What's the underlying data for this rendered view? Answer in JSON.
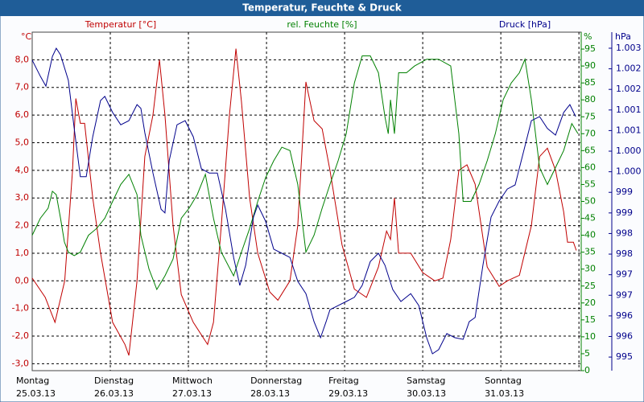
{
  "chart_data": {
    "type": "line",
    "title": "Temperatur, Feuchte & Druck",
    "ylabel": "Temperatur [°C]",
    "yunit": "°C",
    "y2label": "rel. Feuchte [%]",
    "y2unit": "%",
    "y3label": "Druck [hPa]",
    "y3unit": "hPa",
    "xlim": [
      0,
      168.7
    ],
    "xticks": [
      {
        "value": 0,
        "label": "Montag",
        "date": "25.03.13"
      },
      {
        "value": 24,
        "label": "Dienstag",
        "date": "26.03.13"
      },
      {
        "value": 48,
        "label": "Mittwoch",
        "date": "27.03.13"
      },
      {
        "value": 72,
        "label": "Donnerstag",
        "date": "28.03.13"
      },
      {
        "value": 96,
        "label": "Freitag",
        "date": "29.03.13"
      },
      {
        "value": 120,
        "label": "Samstag",
        "date": "30.03.13"
      },
      {
        "value": 144,
        "label": "Sonntag",
        "date": "31.03.13"
      },
      168
    ],
    "ylim": [
      -3.25,
      9.0
    ],
    "yticks": [
      {
        "value": -3,
        "label": "-3,0"
      },
      {
        "value": -2,
        "label": "-2,0"
      },
      {
        "value": -1,
        "label": "-1,0"
      },
      {
        "value": 0,
        "label": "0,0"
      },
      {
        "value": 1,
        "label": "1,0"
      },
      {
        "value": 2,
        "label": "2,0"
      },
      {
        "value": 3,
        "label": "3,0"
      },
      {
        "value": 4,
        "label": "4,0"
      },
      {
        "value": 5,
        "label": "5,0"
      },
      {
        "value": 6,
        "label": "6,0"
      },
      {
        "value": 7,
        "label": "7,0"
      },
      {
        "value": 8,
        "label": "8,0"
      }
    ],
    "y2lim": [
      0,
      100
    ],
    "y2ticks": [
      0,
      5,
      10,
      15,
      20,
      25,
      30,
      35,
      40,
      45,
      50,
      55,
      60,
      65,
      70,
      75,
      80,
      85,
      90,
      95
    ],
    "y3lim": [
      995.17,
      1003.39
    ],
    "y3ticks": [
      {
        "value": 995.5,
        "label": "995"
      },
      {
        "value": 996,
        "label": "996"
      },
      {
        "value": 996.5,
        "label": "996"
      },
      {
        "value": 997,
        "label": "997"
      },
      {
        "value": 997.5,
        "label": "997"
      },
      {
        "value": 998,
        "label": "998"
      },
      {
        "value": 998.5,
        "label": "998"
      },
      {
        "value": 999,
        "label": "999"
      },
      {
        "value": 999.5,
        "label": "999"
      },
      {
        "value": 1000,
        "label": "1.000"
      },
      {
        "value": 1000.5,
        "label": "1.000"
      },
      {
        "value": 1001,
        "label": "1.001"
      },
      {
        "value": 1001.5,
        "label": "1.001"
      },
      {
        "value": 1002,
        "label": "1.002"
      },
      {
        "value": 1002.5,
        "label": "1.002"
      },
      {
        "value": 1003,
        "label": "1.003"
      }
    ],
    "grid": true,
    "series": [
      {
        "name": "Temperatur",
        "color": "#c00000",
        "axis": "y",
        "x": [
          0,
          4,
          7,
          10,
          12.4,
          13.4,
          14.8,
          16.1,
          18.6,
          21,
          24.7,
          28.5,
          29.7,
          32.2,
          34.6,
          37.1,
          39.1,
          40.8,
          43.3,
          45.8,
          49.5,
          53.9,
          55.7,
          58.1,
          60.6,
          62.6,
          64.3,
          66.8,
          69.3,
          73,
          75.5,
          79.2,
          81.6,
          84.1,
          86.6,
          89.1,
          91.5,
          95.2,
          99,
          102.7,
          106.4,
          108.9,
          110.1,
          111.3,
          112.6,
          116.3,
          120,
          123.7,
          126.2,
          128.6,
          131.1,
          133.6,
          136.1,
          139.8,
          143.5,
          146,
          149.7,
          153.4,
          155.9,
          158.3,
          160.8,
          163.3,
          164.5,
          166.3,
          167.2
        ],
        "values": [
          0.1,
          -0.6,
          -1.5,
          0,
          4,
          6.6,
          5.7,
          5.7,
          3,
          1,
          -1.5,
          -2.3,
          -2.7,
          0,
          4.5,
          6,
          8.0,
          6,
          2,
          -0.5,
          -1.5,
          -2.3,
          -1.5,
          2,
          6,
          8.4,
          6.5,
          3,
          1,
          -0.4,
          -0.7,
          0,
          2,
          7.2,
          5.8,
          5.5,
          4,
          1.3,
          -0.3,
          -0.6,
          0.5,
          1.8,
          1.5,
          3.0,
          1.0,
          1.0,
          0.3,
          0,
          0.1,
          1.5,
          4,
          4.2,
          3.5,
          0.5,
          -0.2,
          0,
          0.2,
          2,
          4.5,
          4.8,
          4.0,
          2.5,
          1.4,
          1.4,
          1.1
        ]
      },
      {
        "name": "rel. Feuchte",
        "color": "#008000",
        "axis": "y2",
        "x": [
          0,
          2.5,
          4.9,
          6.2,
          7.4,
          8.7,
          9.9,
          11.1,
          12.9,
          14.8,
          17.3,
          19.8,
          22.3,
          24.7,
          27.2,
          29.7,
          32.2,
          33.4,
          35.9,
          38.3,
          40.8,
          43.3,
          45.8,
          48.2,
          50.7,
          53.2,
          55.7,
          58.1,
          61.9,
          64.3,
          66.8,
          69.3,
          71.7,
          74.2,
          76.7,
          79.2,
          81.6,
          84.1,
          86.6,
          89.1,
          91.5,
          94,
          96.5,
          99,
          101.4,
          103.9,
          106.4,
          108.4,
          109.4,
          110.1,
          111.3,
          112.6,
          115,
          117.5,
          121.2,
          124.9,
          128.6,
          131.1,
          132.4,
          134.8,
          137.3,
          139.8,
          142.3,
          144.7,
          147.2,
          149.7,
          151.4,
          153.4,
          155.9,
          158.3,
          160.8,
          163.3,
          165.8,
          167.7
        ],
        "values": [
          40,
          45,
          48,
          53,
          52,
          45,
          38,
          35,
          34,
          35,
          40,
          42,
          45,
          50,
          55,
          58,
          52,
          40,
          30,
          24,
          28,
          33,
          45,
          48,
          52,
          58,
          45,
          35,
          28,
          35,
          42,
          50,
          57,
          62,
          66,
          65,
          55,
          35,
          40,
          48,
          55,
          62,
          70,
          85,
          93,
          93,
          88,
          75,
          70,
          80,
          70,
          88,
          88,
          90,
          92,
          92,
          90,
          70,
          50,
          50,
          55,
          62,
          70,
          80,
          85,
          88,
          92,
          80,
          60,
          55,
          60,
          65,
          73,
          70
        ]
      },
      {
        "name": "Druck",
        "color": "#00008b",
        "axis": "y3",
        "x": [
          0,
          2.5,
          4.2,
          6.2,
          7.4,
          8.7,
          11.1,
          12.9,
          14.8,
          16.6,
          18.6,
          21,
          22.3,
          24.7,
          27.2,
          29.7,
          32.2,
          33.4,
          34.6,
          37.1,
          39.6,
          40.8,
          42.1,
          44.5,
          47,
          49.5,
          52,
          54.4,
          56.9,
          59.4,
          61.9,
          63.8,
          65.6,
          68,
          69.3,
          71.7,
          74.2,
          76.7,
          79.2,
          81.6,
          84.1,
          86.6,
          88.6,
          90.3,
          91.5,
          94,
          96.5,
          99,
          101.4,
          103.9,
          106.4,
          108.4,
          110.8,
          113.3,
          116.3,
          118.8,
          121.2,
          123,
          124.9,
          127.4,
          129.9,
          132.4,
          134.3,
          136.1,
          138.5,
          141,
          143.5,
          146,
          148.4,
          150.9,
          153.4,
          155.9,
          158.3,
          160.8,
          163.3,
          165.2,
          167
        ],
        "values": [
          1002.71,
          1002.32,
          1002.08,
          1002.8,
          1003,
          1002.84,
          1002.22,
          1001.05,
          999.88,
          999.88,
          1000.85,
          1001.73,
          1001.83,
          1001.44,
          1001.14,
          1001.24,
          1001.63,
          1001.54,
          1000.95,
          999.97,
          999.09,
          999,
          1000.27,
          1001.14,
          1001.24,
          1000.85,
          1000.07,
          999.97,
          999.97,
          999.09,
          997.92,
          997.24,
          997.73,
          998.9,
          999.19,
          998.8,
          998.12,
          998.02,
          997.92,
          997.34,
          997.04,
          996.36,
          995.97,
          996.36,
          996.65,
          996.75,
          996.85,
          996.95,
          997.24,
          997.82,
          998.02,
          997.73,
          997.14,
          996.85,
          997.04,
          996.75,
          995.97,
          995.58,
          995.68,
          996.07,
          995.97,
          995.93,
          996.36,
          996.46,
          997.73,
          998.9,
          999.29,
          999.58,
          999.68,
          1000.46,
          1001.24,
          1001.34,
          1001.05,
          1000.89,
          1001.44,
          1001.63,
          1001.34
        ]
      }
    ]
  }
}
